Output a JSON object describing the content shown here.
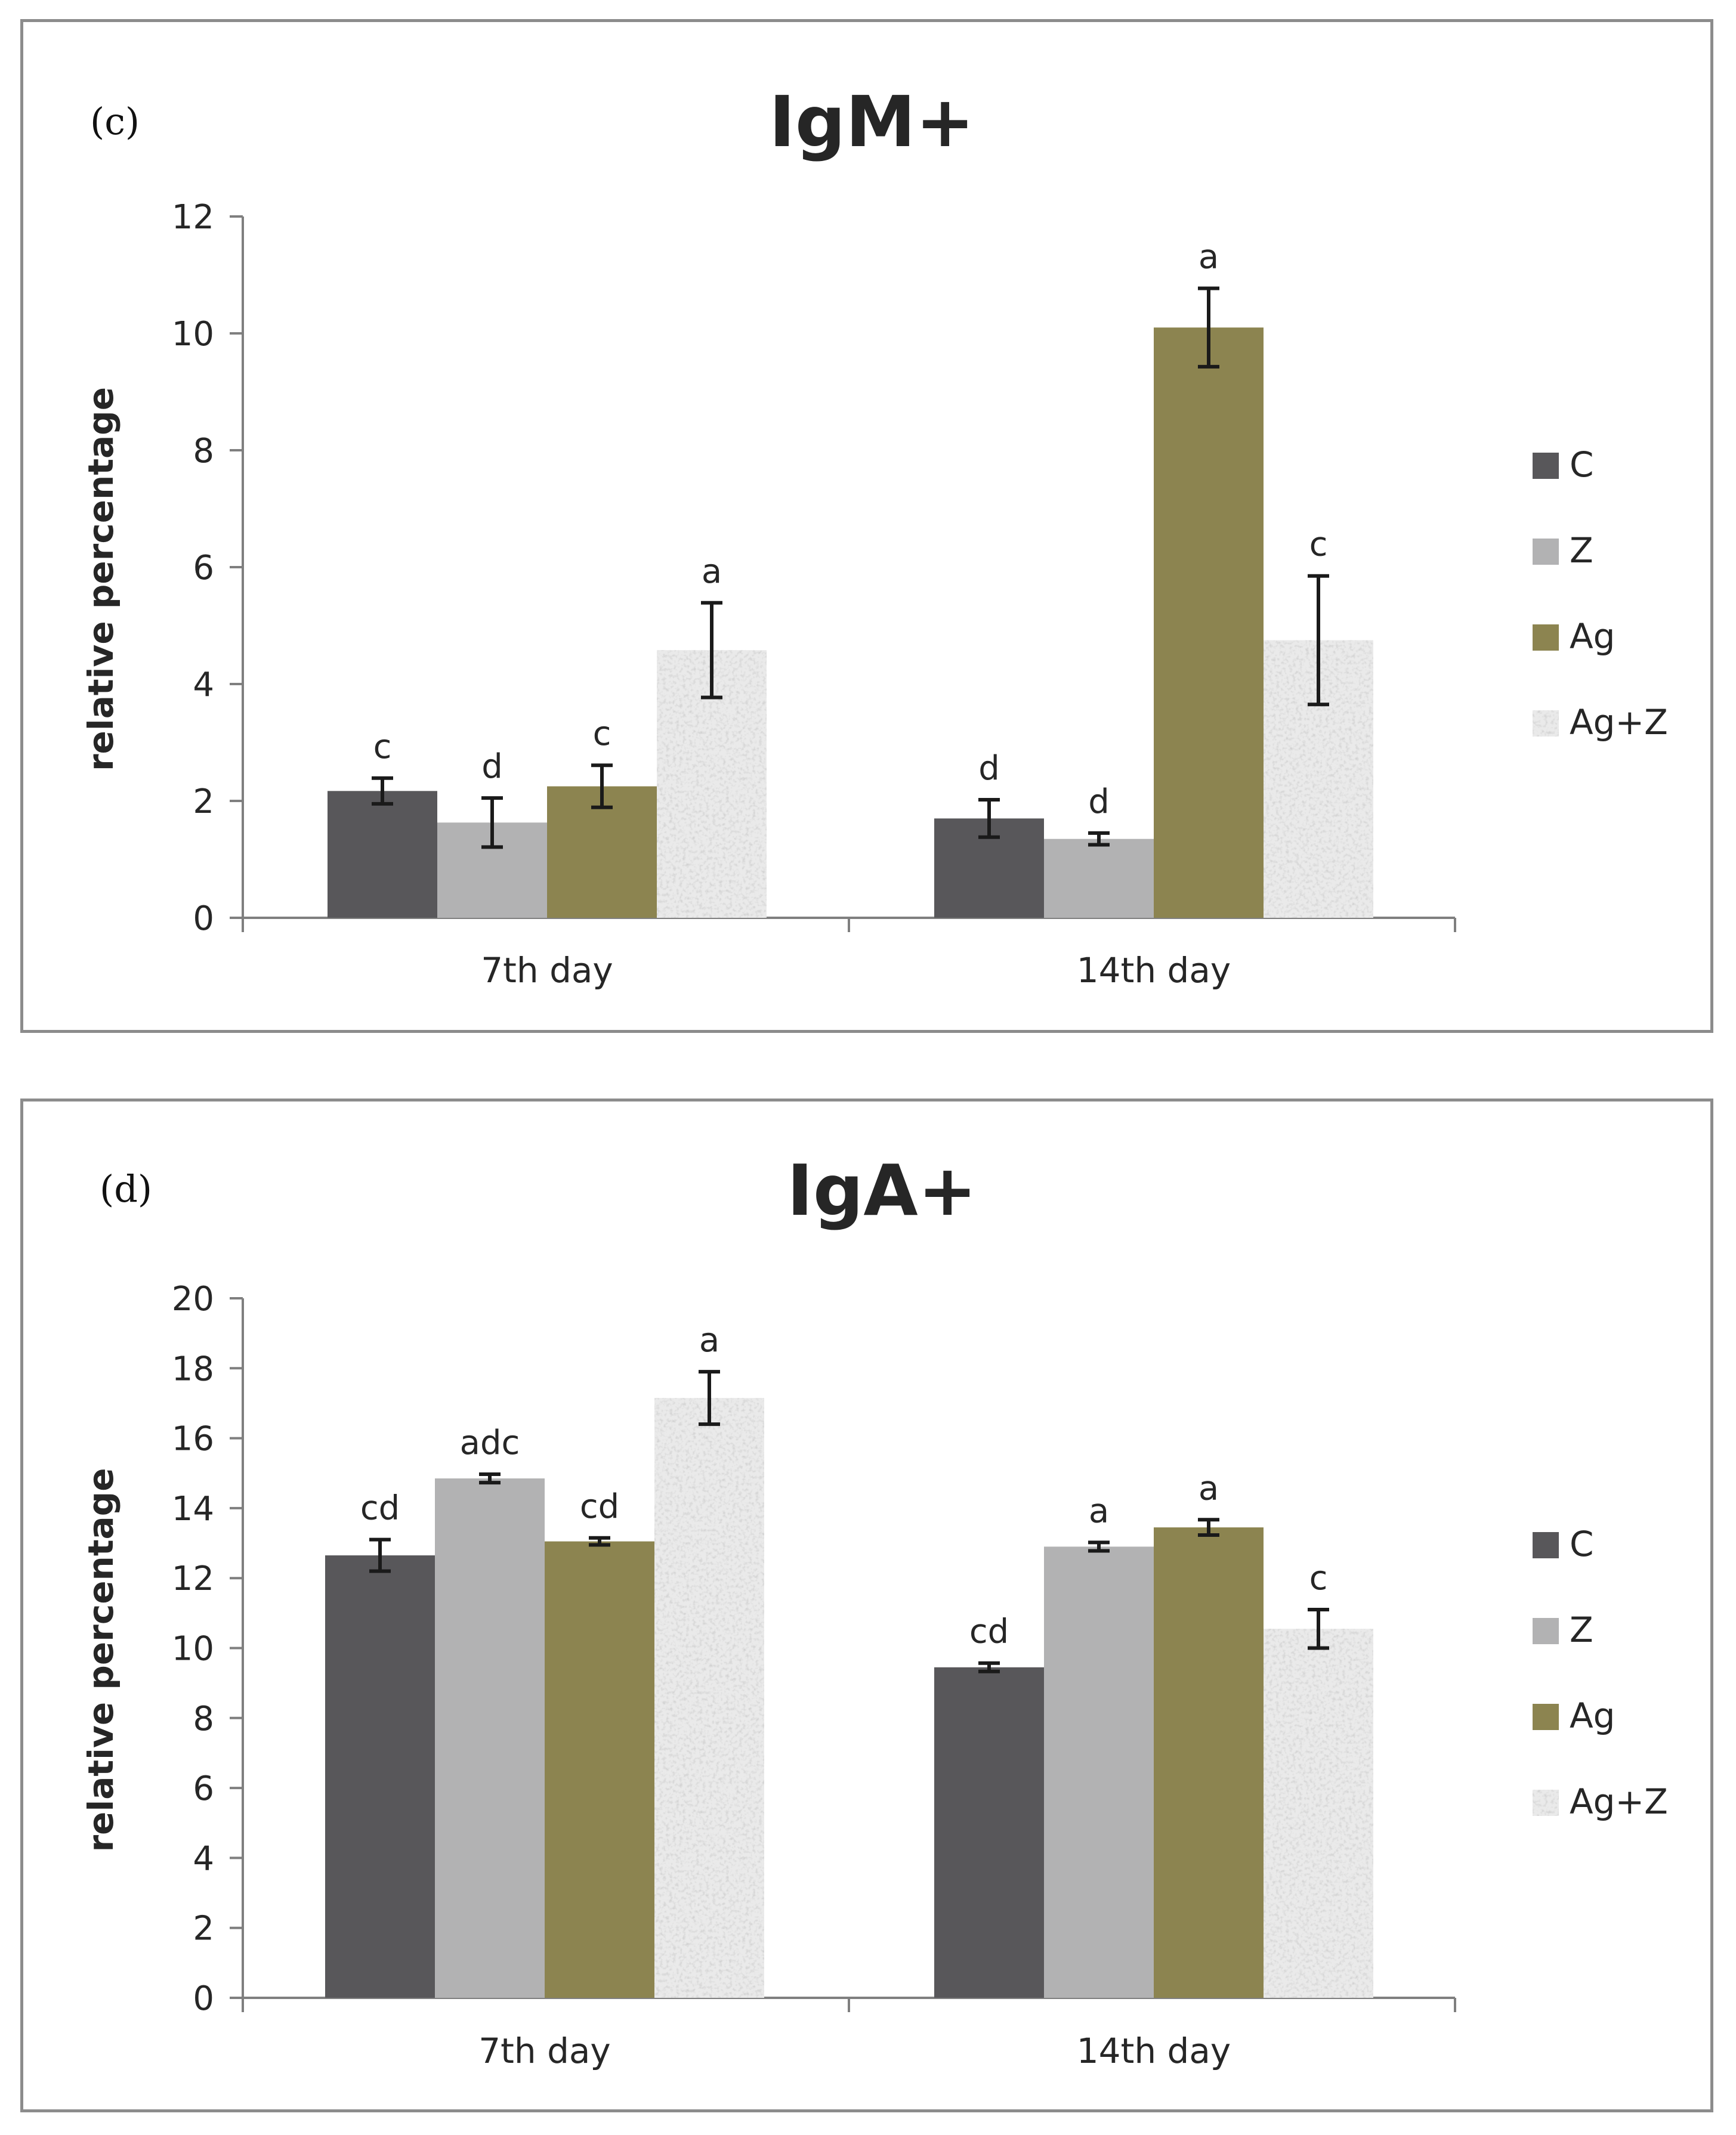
{
  "colors": {
    "C": "#58575a",
    "Z": "#b2b2b3",
    "Ag": "#8c8450",
    "Ag+Z": "#eaeaea",
    "axis": "#7f7f7f",
    "text": "#262626"
  },
  "chart_data": [
    {
      "type": "bar",
      "panel_label": "(c)",
      "title": "IgM+",
      "xlabel": "",
      "ylabel": "relative percentage",
      "ylim": [
        0,
        12
      ],
      "yticks": [
        "0",
        "2",
        "4",
        "6",
        "8",
        "10",
        "12"
      ],
      "categories": [
        "7th day",
        "14th day"
      ],
      "legend": [
        "C",
        "Z",
        "Ag",
        "Ag+Z"
      ],
      "legend_position": "right",
      "series": [
        {
          "name": "C",
          "values": [
            2.17,
            1.7
          ],
          "errors": [
            0.22,
            0.32
          ],
          "labels": [
            "c",
            "d"
          ]
        },
        {
          "name": "Z",
          "values": [
            1.63,
            1.35
          ],
          "errors": [
            0.42,
            0.1
          ],
          "labels": [
            "d",
            "d"
          ]
        },
        {
          "name": "Ag",
          "values": [
            2.25,
            10.1
          ],
          "errors": [
            0.36,
            0.67
          ],
          "labels": [
            "c",
            "a"
          ]
        },
        {
          "name": "Ag+Z",
          "values": [
            4.58,
            4.75
          ],
          "errors": [
            0.81,
            1.1
          ],
          "labels": [
            "a",
            "c"
          ]
        }
      ]
    },
    {
      "type": "bar",
      "panel_label": "(d)",
      "title": "IgA+",
      "xlabel": "",
      "ylabel": "relative percentage",
      "ylim": [
        0,
        20
      ],
      "yticks": [
        "0",
        "2",
        "4",
        "6",
        "8",
        "10",
        "12",
        "14",
        "16",
        "18",
        "20"
      ],
      "categories": [
        "7th day",
        "14th day"
      ],
      "legend": [
        "C",
        "Z",
        "Ag",
        "Ag+Z"
      ],
      "legend_position": "right",
      "series": [
        {
          "name": "C",
          "values": [
            12.65,
            9.45
          ],
          "errors": [
            0.45,
            0.12
          ],
          "labels": [
            "cd",
            "cd"
          ]
        },
        {
          "name": "Z",
          "values": [
            14.85,
            12.9
          ],
          "errors": [
            0.12,
            0.12
          ],
          "labels": [
            "adc",
            "a"
          ]
        },
        {
          "name": "Ag",
          "values": [
            13.05,
            13.45
          ],
          "errors": [
            0.1,
            0.22
          ],
          "labels": [
            "cd",
            "a"
          ]
        },
        {
          "name": "Ag+Z",
          "values": [
            17.15,
            10.55
          ],
          "errors": [
            0.75,
            0.55
          ],
          "labels": [
            "a",
            "c"
          ]
        }
      ]
    }
  ]
}
